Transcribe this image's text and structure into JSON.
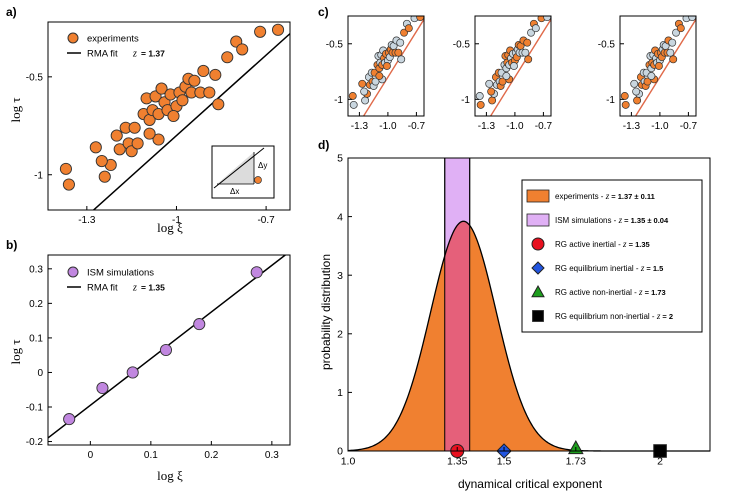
{
  "chart_data": [
    {
      "panel": "a)",
      "type": "scatter",
      "xlabel": "log ξ",
      "ylabel": "log τ",
      "xlim": [
        -1.43,
        -0.62
      ],
      "ylim": [
        -1.18,
        -0.22
      ],
      "xticks": [
        {
          "v": -1.3,
          "label": "-1.3"
        },
        {
          "v": -1.0,
          "label": "-1"
        },
        {
          "v": -0.7,
          "label": "-0.7"
        }
      ],
      "yticks": [
        {
          "v": -1.0,
          "label": "-1"
        },
        {
          "v": -0.5,
          "label": "-0.5"
        }
      ],
      "legend": {
        "scatter_label": "experiments",
        "fit_label": "RMA fit",
        "fit_prefix": "z",
        "fit_value": "= 1.37"
      },
      "fit_line": {
        "slope": 1.37,
        "intercept": 0.57
      },
      "point_color": "#f08030",
      "points": [
        [
          -1.37,
          -0.97
        ],
        [
          -1.36,
          -1.05
        ],
        [
          -1.27,
          -0.86
        ],
        [
          -1.24,
          -1.01
        ],
        [
          -1.22,
          -0.95
        ],
        [
          -1.2,
          -0.8
        ],
        [
          -1.19,
          -0.87
        ],
        [
          -1.17,
          -0.76
        ],
        [
          -1.16,
          -0.84
        ],
        [
          -1.15,
          -0.88
        ],
        [
          -1.14,
          -0.76
        ],
        [
          -1.13,
          -0.84
        ],
        [
          -1.11,
          -0.69
        ],
        [
          -1.1,
          -0.61
        ],
        [
          -1.09,
          -0.72
        ],
        [
          -1.08,
          -0.67
        ],
        [
          -1.07,
          -0.6
        ],
        [
          -1.06,
          -0.69
        ],
        [
          -1.05,
          -0.56
        ],
        [
          -1.04,
          -0.63
        ],
        [
          -1.03,
          -0.67
        ],
        [
          -1.02,
          -0.59
        ],
        [
          -1.0,
          -0.65
        ],
        [
          -0.99,
          -0.58
        ],
        [
          -0.98,
          -0.62
        ],
        [
          -0.97,
          -0.55
        ],
        [
          -0.96,
          -0.51
        ],
        [
          -0.95,
          -0.58
        ],
        [
          -0.94,
          -0.52
        ],
        [
          -0.92,
          -0.58
        ],
        [
          -0.91,
          -0.47
        ],
        [
          -0.89,
          -0.58
        ],
        [
          -0.87,
          -0.49
        ],
        [
          -0.86,
          -0.64
        ],
        [
          -0.83,
          -0.4
        ],
        [
          -0.8,
          -0.32
        ],
        [
          -0.78,
          -0.36
        ],
        [
          -0.72,
          -0.27
        ],
        [
          -0.66,
          -0.26
        ],
        [
          -1.06,
          -0.82
        ],
        [
          -1.09,
          -0.79
        ],
        [
          -1.25,
          -0.93
        ],
        [
          -1.01,
          -0.7
        ]
      ],
      "inset": {
        "dy_label": "Δy",
        "dx_label": "Δx"
      }
    },
    {
      "panel": "b)",
      "type": "scatter",
      "xlabel": "log ξ",
      "ylabel": "log τ",
      "xlim": [
        -0.07,
        0.33
      ],
      "ylim": [
        -0.21,
        0.34
      ],
      "xticks": [
        {
          "v": 0,
          "label": "0"
        },
        {
          "v": 0.1,
          "label": "0.1"
        },
        {
          "v": 0.2,
          "label": "0.2"
        },
        {
          "v": 0.3,
          "label": "0.3"
        }
      ],
      "yticks": [
        {
          "v": -0.2,
          "label": "-0.2"
        },
        {
          "v": -0.1,
          "label": "-0.1"
        },
        {
          "v": 0,
          "label": "0"
        },
        {
          "v": 0.1,
          "label": "0.1"
        },
        {
          "v": 0.2,
          "label": "0.2"
        },
        {
          "v": 0.3,
          "label": "0.3"
        }
      ],
      "legend": {
        "scatter_label": "ISM simulations",
        "fit_label": "RMA fit",
        "fit_prefix": "z",
        "fit_value": "= 1.35"
      },
      "fit_line": {
        "slope": 1.35,
        "intercept": -0.095
      },
      "point_color": "#c187e0",
      "points": [
        [
          -0.035,
          -0.135
        ],
        [
          0.02,
          -0.045
        ],
        [
          0.07,
          0.0
        ],
        [
          0.125,
          0.065
        ],
        [
          0.18,
          0.14
        ],
        [
          0.275,
          0.29
        ]
      ]
    },
    {
      "panel": "c)",
      "type": "scatter",
      "xlim": [
        -1.42,
        -0.62
      ],
      "ylim": [
        -1.15,
        -0.25
      ],
      "xticks": [
        {
          "v": -1.3,
          "label": "-1.3"
        },
        {
          "v": -1.0,
          "label": "-1.0"
        },
        {
          "v": -0.7,
          "label": "-0.7"
        }
      ],
      "yticks": [
        {
          "v": -1.0,
          "label": "-1"
        },
        {
          "v": -0.5,
          "label": "-0.5"
        }
      ],
      "fit_line": {
        "slope": 1.37,
        "intercept": 0.57
      },
      "colors": {
        "orange": "#f08030",
        "gray": "#c9d6df",
        "line": "#e06a4a"
      },
      "subpanels": [
        {
          "orange_idx": [
            0,
            2,
            4,
            6,
            8,
            10,
            12,
            14,
            17,
            19,
            21,
            23,
            25,
            27,
            29,
            31,
            34,
            36,
            38,
            40,
            42
          ]
        },
        {
          "orange_idx": [
            1,
            3,
            5,
            7,
            9,
            11,
            13,
            15,
            16,
            18,
            20,
            22,
            24,
            26,
            28,
            30,
            32,
            33,
            35,
            37,
            39,
            41
          ]
        },
        {
          "orange_idx": [
            0,
            3,
            6,
            9,
            12,
            15,
            18,
            21,
            24,
            27,
            30,
            33,
            36,
            39,
            42,
            1,
            5,
            11,
            17,
            23,
            29,
            35
          ]
        }
      ]
    },
    {
      "panel": "d)",
      "type": "area",
      "xlabel": "dynamical critical exponent",
      "ylabel": "probability distribution",
      "xlim": [
        1.0,
        2.16
      ],
      "ylim": [
        0,
        5
      ],
      "xticks": [
        {
          "v": 1.0,
          "label": "1.0"
        },
        {
          "v": 1.35,
          "label": "1.35"
        },
        {
          "v": 1.5,
          "label": "1.5"
        },
        {
          "v": 1.73,
          "label": "1.73"
        },
        {
          "v": 2.0,
          "label": "2"
        }
      ],
      "yticks": [
        {
          "v": 0,
          "label": "0"
        },
        {
          "v": 1,
          "label": "1"
        },
        {
          "v": 2,
          "label": "2"
        },
        {
          "v": 3,
          "label": "3"
        },
        {
          "v": 4,
          "label": "4"
        },
        {
          "v": 5,
          "label": "5"
        }
      ],
      "distribution": {
        "mean": 1.37,
        "sigma": 0.105,
        "color": "#f08030"
      },
      "band": {
        "center": 1.35,
        "halfwidth": 0.04,
        "color": "#e0b0f5",
        "overlap_color": "#e5607a"
      },
      "markers": [
        {
          "shape": "circle",
          "x": 1.35,
          "color": "#e8101f"
        },
        {
          "shape": "diamond",
          "x": 1.5,
          "color": "#2255e0"
        },
        {
          "shape": "triangle",
          "x": 1.73,
          "color": "#1e9e1e"
        },
        {
          "shape": "square",
          "x": 2.0,
          "color": "#000000"
        }
      ],
      "legend": [
        {
          "shape": "rect",
          "color": "#f08030",
          "text": "experiments - ",
          "z": "z",
          "val": " = 1.37 ± 0.11"
        },
        {
          "shape": "rect",
          "color": "#e0b0f5",
          "text": "ISM simulations - ",
          "z": "z",
          "val": " = 1.35 ± 0.04"
        },
        {
          "shape": "circle",
          "color": "#e8101f",
          "text": "RG active inertial - ",
          "z": "z",
          "val": " = 1.35"
        },
        {
          "shape": "diamond",
          "color": "#2255e0",
          "text": "RG equilibrium inertial - ",
          "z": "z",
          "val": " = 1.5"
        },
        {
          "shape": "triangle",
          "color": "#1e9e1e",
          "text": "RG active non-inertial - ",
          "z": "z",
          "val": " = 1.73"
        },
        {
          "shape": "square",
          "color": "#000000",
          "text": "RG equilibrium non-inertial - ",
          "z": "z",
          "val": " = 2"
        }
      ]
    }
  ]
}
